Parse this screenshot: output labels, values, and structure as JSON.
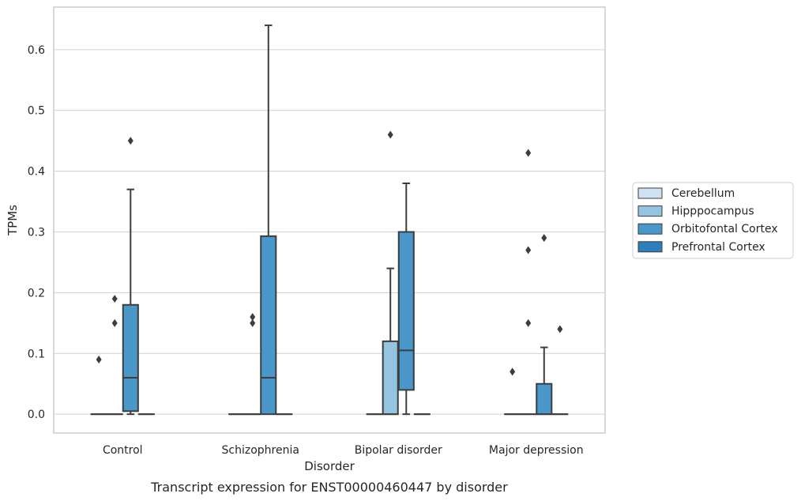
{
  "chart_data": {
    "type": "box",
    "caption": "Transcript expression for ENST00000460447 by disorder",
    "xlabel": "Disorder",
    "ylabel": "TPMs",
    "ylim": [
      -0.031,
      0.67
    ],
    "yticks": [
      0.0,
      0.1,
      0.2,
      0.3,
      0.4,
      0.5,
      0.6
    ],
    "ytick_labels": [
      "0.0",
      "0.1",
      "0.2",
      "0.3",
      "0.4",
      "0.5",
      "0.6"
    ],
    "grid": "horizontal",
    "legend_position": "right",
    "categories": [
      "Control",
      "Schizophrenia",
      "Bipolar disorder",
      "Major depression"
    ],
    "series": [
      {
        "name": "Cerebellum",
        "color": "#d0e1f2",
        "boxes": [
          {
            "q1": 0,
            "median": 0,
            "q3": 0,
            "whisker_low": 0,
            "whisker_high": 0,
            "outliers": [
              0.09
            ]
          },
          {
            "q1": 0,
            "median": 0,
            "q3": 0,
            "whisker_low": 0,
            "whisker_high": 0,
            "outliers": []
          },
          {
            "q1": 0,
            "median": 0,
            "q3": 0,
            "whisker_low": 0,
            "whisker_high": 0,
            "outliers": []
          },
          {
            "q1": 0,
            "median": 0,
            "q3": 0,
            "whisker_low": 0,
            "whisker_high": 0,
            "outliers": [
              0.07
            ]
          }
        ]
      },
      {
        "name": "Hipppocampus",
        "color": "#94c4df",
        "boxes": [
          {
            "q1": 0,
            "median": 0,
            "q3": 0,
            "whisker_low": 0,
            "whisker_high": 0,
            "outliers": [
              0.15,
              0.19
            ]
          },
          {
            "q1": 0,
            "median": 0,
            "q3": 0,
            "whisker_low": 0,
            "whisker_high": 0,
            "outliers": [
              0.15,
              0.16
            ]
          },
          {
            "q1": 0,
            "median": 0,
            "q3": 0.12,
            "whisker_low": 0,
            "whisker_high": 0.24,
            "outliers": [
              0.46
            ]
          },
          {
            "q1": 0,
            "median": 0,
            "q3": 0,
            "whisker_low": 0,
            "whisker_high": 0,
            "outliers": [
              0.15,
              0.27,
              0.43
            ]
          }
        ]
      },
      {
        "name": "Orbitofontal Cortex",
        "color": "#4a98c9",
        "boxes": [
          {
            "q1": 0.005,
            "median": 0.06,
            "q3": 0.18,
            "whisker_low": 0,
            "whisker_high": 0.37,
            "outliers": [
              0.45
            ]
          },
          {
            "q1": 0,
            "median": 0.06,
            "q3": 0.293,
            "whisker_low": 0,
            "whisker_high": 0.64,
            "outliers": []
          },
          {
            "q1": 0.04,
            "median": 0.105,
            "q3": 0.3,
            "whisker_low": 0,
            "whisker_high": 0.38,
            "outliers": []
          },
          {
            "q1": 0,
            "median": 0,
            "q3": 0.05,
            "whisker_low": 0,
            "whisker_high": 0.11,
            "outliers": [
              0.29
            ]
          }
        ]
      },
      {
        "name": "Prefrontal Cortex",
        "color": "#2e7ebc",
        "boxes": [
          {
            "q1": 0,
            "median": 0,
            "q3": 0,
            "whisker_low": 0,
            "whisker_high": 0,
            "outliers": []
          },
          {
            "q1": 0,
            "median": 0,
            "q3": 0,
            "whisker_low": 0,
            "whisker_high": 0,
            "outliers": []
          },
          {
            "q1": 0,
            "median": 0,
            "q3": 0,
            "whisker_low": 0,
            "whisker_high": 0,
            "outliers": []
          },
          {
            "q1": 0,
            "median": 0,
            "q3": 0,
            "whisker_low": 0,
            "whisker_high": 0,
            "outliers": [
              0.14
            ]
          }
        ]
      }
    ]
  }
}
